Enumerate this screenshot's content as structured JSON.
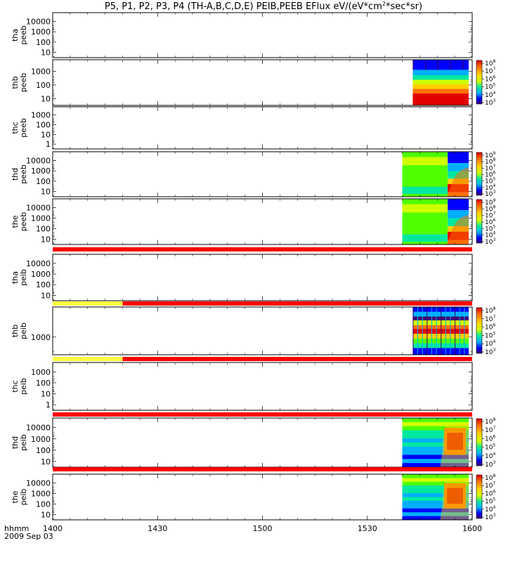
{
  "chart_data": {
    "type": "heatmap",
    "title": "P5, P1, P2, P3, P4 (TH-A,B,C,D,E) PEIB,PEEB EFlux eV/(eV*cm",
    "title_sup": "2",
    "title_tail": "*sec*sr)",
    "x_axis": {
      "label": "hhmm",
      "date": "2009 Sep 03",
      "ticks": [
        "1400",
        "1430",
        "1500",
        "1530",
        "1600"
      ],
      "range": [
        "14:00",
        "16:00"
      ]
    },
    "colorscale": [
      "#3d0070",
      "#0000ff",
      "#00b0ff",
      "#00e8a0",
      "#50ff00",
      "#d0ff00",
      "#ffd000",
      "#ff7000",
      "#e00000"
    ],
    "flag_colors": {
      "yellow": "#ffff40",
      "red": "#ff0000"
    },
    "panels": [
      {
        "probe": "tha",
        "product": "peeb",
        "yticks": [
          "10000",
          "1000",
          "100",
          "10"
        ],
        "colorbar": [],
        "data": []
      },
      {
        "probe": "thb",
        "product": "peeb",
        "yticks": [
          "1000",
          "100",
          "10"
        ],
        "colorbar": [
          "8",
          "7",
          "6",
          "5",
          "4",
          "3"
        ],
        "data": [
          {
            "start": "15:43",
            "end": "15:59",
            "style": "peeb_b"
          }
        ]
      },
      {
        "probe": "thc",
        "product": "peeb",
        "yticks": [
          "1000",
          "100",
          "10",
          "1"
        ],
        "colorbar": [],
        "data": []
      },
      {
        "probe": "thd",
        "product": "peeb",
        "yticks": [
          "10000",
          "1000",
          "100",
          "10"
        ],
        "colorbar": [
          "9",
          "8",
          "7",
          "6",
          "5",
          "4",
          "3"
        ],
        "data": [
          {
            "start": "15:40",
            "end": "15:59",
            "style": "peeb_de"
          }
        ]
      },
      {
        "probe": "the",
        "product": "peeb",
        "yticks": [
          "10000",
          "1000",
          "100",
          "10"
        ],
        "colorbar": [
          "9",
          "8",
          "7",
          "6",
          "5",
          "4",
          "3"
        ],
        "data": [
          {
            "start": "15:40",
            "end": "15:59",
            "style": "peeb_de"
          }
        ]
      },
      {
        "probe": "tha",
        "product": "peib",
        "yticks": [
          "10000",
          "1000",
          "100",
          "10"
        ],
        "colorbar": [],
        "data": []
      },
      {
        "probe": "thb",
        "product": "peib",
        "yticks": [
          "1000"
        ],
        "colorbar": [
          "8",
          "7",
          "6",
          "5",
          "4",
          "3"
        ],
        "data": [
          {
            "start": "15:43",
            "end": "15:59",
            "style": "peib_b"
          }
        ]
      },
      {
        "probe": "thc",
        "product": "peib",
        "yticks": [
          "1000",
          "100",
          "10",
          "1"
        ],
        "colorbar": [],
        "data": []
      },
      {
        "probe": "thd",
        "product": "peib",
        "yticks": [
          "10000",
          "1000",
          "100",
          "10"
        ],
        "colorbar": [
          "8",
          "7",
          "6",
          "5",
          "4",
          "3"
        ],
        "data": [
          {
            "start": "15:40",
            "end": "15:59",
            "style": "peib_de"
          }
        ]
      },
      {
        "probe": "the",
        "product": "peib",
        "yticks": [
          "10000",
          "1000",
          "100",
          "10"
        ],
        "colorbar": [
          "8",
          "7",
          "6",
          "5",
          "4",
          "3"
        ],
        "data": [
          {
            "start": "15:40",
            "end": "15:59",
            "style": "peib_de"
          }
        ]
      }
    ],
    "flag_bars": [
      {
        "after_panel": 4,
        "segments": [
          {
            "color": "red",
            "start": "14:00",
            "end": "16:00"
          }
        ]
      },
      {
        "after_panel": 5,
        "segments": [
          {
            "color": "yellow",
            "start": "14:00",
            "end": "14:20"
          },
          {
            "color": "red",
            "start": "14:20",
            "end": "16:00"
          }
        ]
      },
      {
        "after_panel": 6,
        "segments": [
          {
            "color": "yellow",
            "start": "14:00",
            "end": "14:20"
          },
          {
            "color": "red",
            "start": "14:20",
            "end": "16:00"
          }
        ]
      },
      {
        "after_panel": 7,
        "segments": [
          {
            "color": "red",
            "start": "14:00",
            "end": "16:00"
          }
        ]
      },
      {
        "after_panel": 8,
        "segments": [
          {
            "color": "red",
            "start": "14:00",
            "end": "16:00"
          }
        ]
      }
    ]
  }
}
